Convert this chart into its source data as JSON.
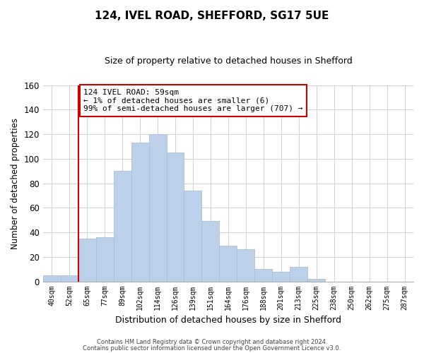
{
  "title": "124, IVEL ROAD, SHEFFORD, SG17 5UE",
  "subtitle": "Size of property relative to detached houses in Shefford",
  "xlabel": "Distribution of detached houses by size in Shefford",
  "ylabel": "Number of detached properties",
  "bar_labels": [
    "40sqm",
    "52sqm",
    "65sqm",
    "77sqm",
    "89sqm",
    "102sqm",
    "114sqm",
    "126sqm",
    "139sqm",
    "151sqm",
    "164sqm",
    "176sqm",
    "188sqm",
    "201sqm",
    "213sqm",
    "225sqm",
    "238sqm",
    "250sqm",
    "262sqm",
    "275sqm",
    "287sqm"
  ],
  "bar_values": [
    5,
    5,
    35,
    36,
    90,
    113,
    120,
    105,
    74,
    49,
    29,
    26,
    10,
    8,
    12,
    2,
    0,
    0,
    0,
    0,
    0
  ],
  "bar_color": "#bdd0e9",
  "bar_edge_color": "#a8bfd8",
  "ylim": [
    0,
    160
  ],
  "yticks": [
    0,
    20,
    40,
    60,
    80,
    100,
    120,
    140,
    160
  ],
  "grid_color": "#d0d0d0",
  "vline_color": "#cc0000",
  "vline_x": 1.5,
  "annotation_title": "124 IVEL ROAD: 59sqm",
  "annotation_line1": "← 1% of detached houses are smaller (6)",
  "annotation_line2": "99% of semi-detached houses are larger (707) →",
  "annotation_box_color": "#ffffff",
  "annotation_box_edge": "#cc0000",
  "footer_line1": "Contains HM Land Registry data © Crown copyright and database right 2024.",
  "footer_line2": "Contains public sector information licensed under the Open Government Licence v3.0.",
  "background_color": "#ffffff",
  "fig_width": 6.0,
  "fig_height": 5.0
}
